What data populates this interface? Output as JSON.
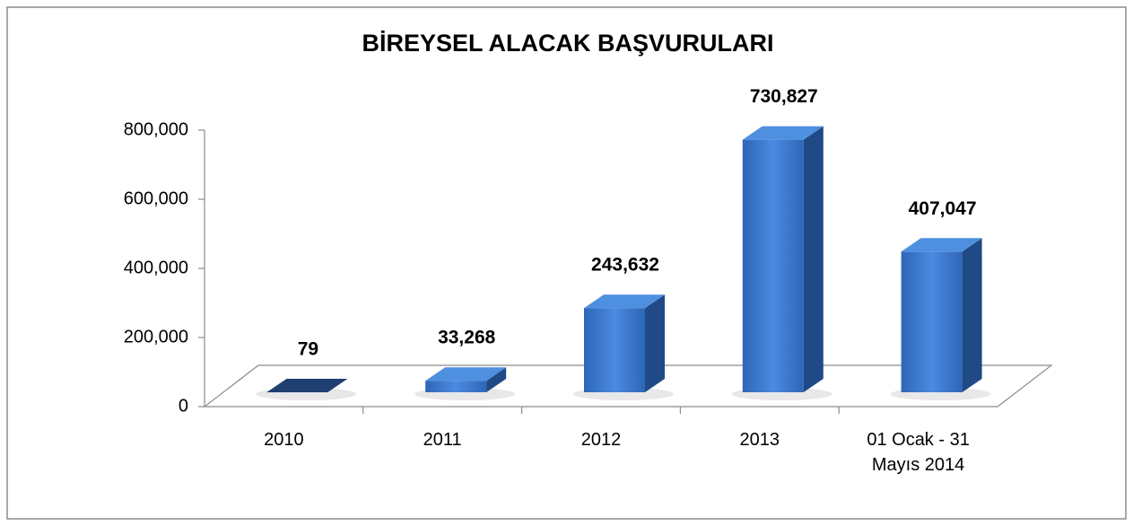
{
  "chart_data": {
    "type": "bar3d",
    "title": "BİREYSEL ALACAK BAŞVURULARI",
    "categories": [
      "2010",
      "2011",
      "2012",
      "2013",
      "01 Ocak - 31 Mayıs 2014"
    ],
    "values": [
      79,
      33268,
      243632,
      730827,
      407047
    ],
    "value_labels": [
      "79",
      "33,268",
      "243,632",
      "730,827",
      "407,047"
    ],
    "color": "#3a78cc",
    "ylim": [
      0,
      800000
    ],
    "yticks": [
      0,
      {
        "value": 200000,
        "label": "200,000"
      },
      {
        "value": 400000,
        "label": "400,000"
      },
      {
        "value": 600000,
        "label": "600,000"
      },
      {
        "value": 800000,
        "label": "800,000"
      }
    ]
  }
}
